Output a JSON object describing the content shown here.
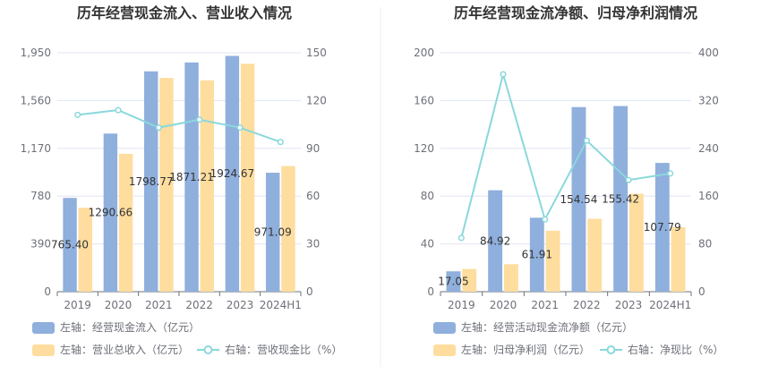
{
  "colors": {
    "bar_primary": "#8fafdd",
    "bar_secondary": "#fedd9e",
    "line": "#8ad8dc",
    "divider": "#eeeeee"
  },
  "chart_data": [
    {
      "type": "bar",
      "title": "历年经营现金流入、营业收入情况",
      "categories": [
        "2019",
        "2020",
        "2021",
        "2022",
        "2023",
        "2024H1"
      ],
      "left_axis": {
        "min": 0,
        "max": 1950,
        "ticks": [
          "0",
          "390",
          "780",
          "1,170",
          "1,560",
          "1,950"
        ],
        "tick_values": [
          0,
          390,
          780,
          1170,
          1560,
          1950
        ]
      },
      "right_axis": {
        "min": 0,
        "max": 150,
        "ticks": [
          "0",
          "30",
          "60",
          "90",
          "120",
          "150"
        ],
        "tick_values": [
          0,
          30,
          60,
          90,
          120,
          150
        ]
      },
      "series": [
        {
          "name": "左轴：经营现金流入（亿元）",
          "kind": "bar",
          "axis": "left",
          "values": [
            765.4,
            1290.66,
            1798.77,
            1871.21,
            1924.67,
            971.09
          ],
          "labels": [
            "765.40",
            "1290.66",
            "1798.77",
            "1871.21",
            "1924.67",
            "971.09"
          ]
        },
        {
          "name": "左轴：营业总收入（亿元）",
          "kind": "bar",
          "axis": "left",
          "values": [
            685,
            1125,
            1745,
            1725,
            1860,
            1025
          ]
        },
        {
          "name": "右轴：营收现金比（%）",
          "kind": "line",
          "axis": "right",
          "values": [
            111,
            114,
            103,
            108,
            103,
            94
          ]
        }
      ],
      "grid": true,
      "legend_position": "bottom"
    },
    {
      "type": "bar",
      "title": "历年经营现金流净额、归母净利润情况",
      "categories": [
        "2019",
        "2020",
        "2021",
        "2022",
        "2023",
        "2024H1"
      ],
      "left_axis": {
        "min": 0,
        "max": 200,
        "ticks": [
          "0",
          "40",
          "80",
          "120",
          "160",
          "200"
        ],
        "tick_values": [
          0,
          40,
          80,
          120,
          160,
          200
        ]
      },
      "right_axis": {
        "min": 0,
        "max": 400,
        "ticks": [
          "0",
          "80",
          "160",
          "240",
          "320",
          "400"
        ],
        "tick_values": [
          0,
          80,
          160,
          240,
          320,
          400
        ]
      },
      "series": [
        {
          "name": "左轴：经营活动现金流净额（亿元）",
          "kind": "bar",
          "axis": "left",
          "values": [
            17.05,
            84.92,
            61.91,
            154.54,
            155.42,
            107.79
          ],
          "labels": [
            "17.05",
            "84.92",
            "61.91",
            "154.54",
            "155.42",
            "107.79"
          ]
        },
        {
          "name": "左轴：归母净利润（亿元）",
          "kind": "bar",
          "axis": "left",
          "values": [
            19,
            23,
            51,
            61,
            82,
            54
          ]
        },
        {
          "name": "右轴：净现比（%）",
          "kind": "line",
          "axis": "right",
          "values": [
            90,
            364,
            121,
            253,
            187,
            198
          ]
        }
      ],
      "grid": true,
      "legend_position": "bottom"
    }
  ]
}
